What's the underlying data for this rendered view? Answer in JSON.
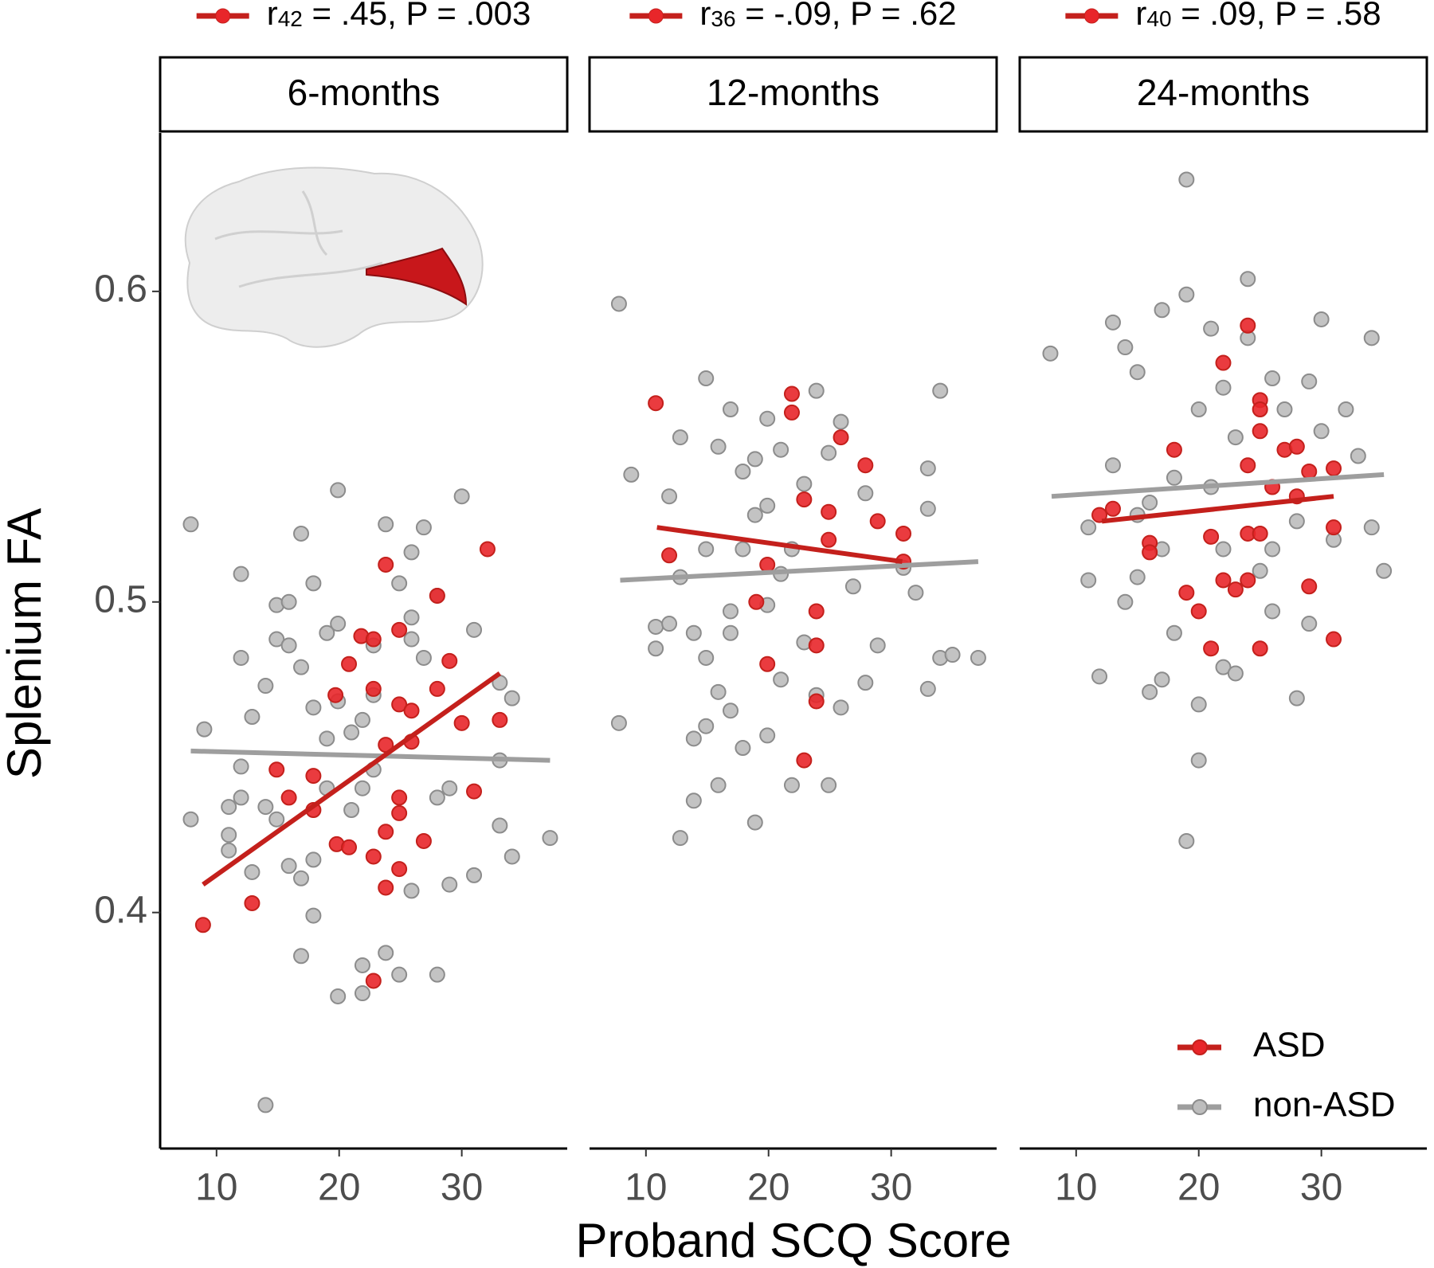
{
  "y_label": "Splenium FA",
  "x_label": "Proband SCQ Score",
  "chart_data": [
    {
      "type": "scatter",
      "title": "6-months",
      "annotation": {
        "symbol": "r",
        "subscript": "42",
        "text": " = .45, P = .003"
      },
      "xlim": [
        5.4,
        38.6
      ],
      "xticks": [
        10,
        20,
        30
      ],
      "ylim": [
        0.324,
        0.651
      ],
      "yticks": [
        0.4,
        0.5,
        0.6
      ],
      "series": [
        {
          "name": "non-ASD",
          "color": "#bdbdbd",
          "line_color": "#9e9e9e",
          "x": [
            7.9,
            7.9,
            9,
            11,
            11,
            11,
            12,
            12,
            12,
            12,
            12.9,
            12.9,
            14,
            14,
            14,
            14.9,
            14.9,
            14.9,
            15.9,
            15.9,
            15.9,
            16.9,
            16.9,
            16.9,
            16.9,
            17.9,
            17.9,
            17.9,
            17.9,
            19,
            19,
            19.9,
            19.9,
            19.9,
            19.9,
            21,
            21,
            21.9,
            21.9,
            21.9,
            22.8,
            22.8,
            23.8,
            23.8,
            24.9,
            24.9,
            25.9,
            25.9,
            25.9,
            26.9,
            26.9,
            28,
            28,
            28,
            29,
            29,
            30,
            31,
            31,
            33.1,
            33.1,
            33.1,
            34.1,
            34.1,
            37.2,
            22.8,
            25.9,
            19,
            21.9
          ],
          "values": [
            0.525,
            0.43,
            0.459,
            0.434,
            0.425,
            0.42,
            0.509,
            0.482,
            0.447,
            0.437,
            0.463,
            0.413,
            0.473,
            0.434,
            0.338,
            0.499,
            0.488,
            0.43,
            0.5,
            0.486,
            0.415,
            0.522,
            0.479,
            0.411,
            0.386,
            0.506,
            0.466,
            0.399,
            0.417,
            0.49,
            0.456,
            0.536,
            0.493,
            0.468,
            0.373,
            0.458,
            0.433,
            0.462,
            0.383,
            0.374,
            0.47,
            0.446,
            0.525,
            0.387,
            0.506,
            0.38,
            0.516,
            0.495,
            0.407,
            0.524,
            0.482,
            0.502,
            0.437,
            0.38,
            0.44,
            0.409,
            0.534,
            0.491,
            0.412,
            0.474,
            0.449,
            0.428,
            0.469,
            0.418,
            0.424,
            0.486,
            0.488,
            0.44,
            0.44
          ],
          "fit_x": [
            7.9,
            37.2
          ],
          "fit_values": [
            0.452,
            0.449
          ]
        },
        {
          "name": "ASD",
          "color": "#e8262a",
          "line_color": "#c4201c",
          "x": [
            8.9,
            12.9,
            14.9,
            15.9,
            17.9,
            17.9,
            19.7,
            19.8,
            20.8,
            20.8,
            21.8,
            22.8,
            22.8,
            22.8,
            23.8,
            23.8,
            23.8,
            23.8,
            24.9,
            24.9,
            24.9,
            24.9,
            24.9,
            25.9,
            25.9,
            26.9,
            28,
            29,
            30,
            31,
            32.1,
            33.1,
            22.8,
            28
          ],
          "values": [
            0.396,
            0.403,
            0.446,
            0.437,
            0.444,
            0.433,
            0.47,
            0.422,
            0.48,
            0.421,
            0.489,
            0.418,
            0.472,
            0.378,
            0.512,
            0.454,
            0.426,
            0.408,
            0.491,
            0.467,
            0.432,
            0.414,
            0.437,
            0.465,
            0.455,
            0.423,
            0.472,
            0.481,
            0.461,
            0.439,
            0.517,
            0.462,
            0.488,
            0.502
          ],
          "fit_x": [
            8.9,
            33.1
          ],
          "fit_values": [
            0.409,
            0.477
          ]
        }
      ]
    },
    {
      "type": "scatter",
      "title": "12-months",
      "annotation": {
        "symbol": "r",
        "subscript": "36",
        "text": " = -.09, P = .62"
      },
      "xlim": [
        5.4,
        38.6
      ],
      "xticks": [
        10,
        20,
        30
      ],
      "ylim": [
        0.324,
        0.651
      ],
      "series": [
        {
          "name": "non-ASD",
          "color": "#bdbdbd",
          "line_color": "#9e9e9e",
          "x": [
            7.8,
            7.8,
            8.8,
            10.8,
            10.8,
            11.9,
            11.9,
            12.8,
            12.8,
            12.8,
            13.9,
            13.9,
            13.9,
            14.9,
            14.9,
            14.9,
            14.9,
            15.9,
            15.9,
            15.9,
            16.9,
            16.9,
            16.9,
            16.9,
            17.9,
            17.9,
            17.9,
            18.9,
            18.9,
            18.9,
            19.9,
            19.9,
            19.9,
            21,
            21,
            21,
            21.9,
            22.9,
            22.9,
            23.9,
            23.9,
            24.9,
            24.9,
            25.9,
            25.9,
            26.9,
            27.9,
            27.9,
            28.9,
            31,
            32,
            33,
            33,
            33,
            34,
            34,
            35,
            37.1,
            21.9,
            19.9
          ],
          "values": [
            0.596,
            0.461,
            0.541,
            0.492,
            0.485,
            0.534,
            0.493,
            0.424,
            0.553,
            0.508,
            0.49,
            0.456,
            0.436,
            0.572,
            0.517,
            0.482,
            0.46,
            0.55,
            0.471,
            0.441,
            0.562,
            0.497,
            0.49,
            0.465,
            0.542,
            0.517,
            0.453,
            0.546,
            0.528,
            0.429,
            0.559,
            0.531,
            0.457,
            0.549,
            0.509,
            0.475,
            0.441,
            0.538,
            0.487,
            0.568,
            0.47,
            0.548,
            0.441,
            0.558,
            0.466,
            0.505,
            0.535,
            0.474,
            0.486,
            0.511,
            0.503,
            0.543,
            0.53,
            0.472,
            0.568,
            0.482,
            0.483,
            0.482,
            0.517,
            0.499
          ],
          "fit_x": [
            7.9,
            37.1
          ],
          "fit_values": [
            0.507,
            0.513
          ]
        },
        {
          "name": "ASD",
          "color": "#e8262a",
          "line_color": "#c4201c",
          "x": [
            10.8,
            11.9,
            19,
            19.9,
            19.9,
            21.9,
            21.9,
            22.9,
            22.9,
            23.9,
            23.9,
            23.9,
            24.9,
            24.9,
            25.9,
            27.9,
            28.9,
            31,
            31
          ],
          "values": [
            0.564,
            0.515,
            0.5,
            0.48,
            0.512,
            0.567,
            0.561,
            0.533,
            0.449,
            0.497,
            0.486,
            0.468,
            0.529,
            0.52,
            0.553,
            0.544,
            0.526,
            0.522,
            0.513
          ],
          "fit_x": [
            10.9,
            30.9
          ],
          "fit_values": [
            0.524,
            0.513
          ]
        }
      ]
    },
    {
      "type": "scatter",
      "title": "24-months",
      "annotation": {
        "symbol": "r",
        "subscript": "40",
        "text": " = .09, P = .58"
      },
      "xlim": [
        5.4,
        38.6
      ],
      "xticks": [
        10,
        20,
        30
      ],
      "ylim": [
        0.324,
        0.651
      ],
      "legend": "bottom-right",
      "series": [
        {
          "name": "non-ASD",
          "color": "#bdbdbd",
          "line_color": "#9e9e9e",
          "x": [
            7.9,
            11,
            11,
            11.9,
            13,
            13,
            14,
            14,
            15,
            15,
            16,
            16,
            17,
            17,
            18,
            19,
            19,
            19,
            20,
            20,
            20,
            21,
            21,
            22,
            22,
            23,
            23,
            24,
            24,
            25,
            26,
            26,
            27,
            28,
            28,
            29,
            29,
            30,
            31,
            32,
            33,
            34.1,
            34.1,
            35.1,
            15,
            17,
            18,
            22,
            26,
            30
          ],
          "values": [
            0.58,
            0.524,
            0.507,
            0.476,
            0.544,
            0.59,
            0.582,
            0.5,
            0.574,
            0.508,
            0.471,
            0.532,
            0.594,
            0.475,
            0.49,
            0.636,
            0.599,
            0.423,
            0.449,
            0.467,
            0.562,
            0.588,
            0.537,
            0.569,
            0.479,
            0.553,
            0.477,
            0.604,
            0.585,
            0.51,
            0.572,
            0.497,
            0.562,
            0.526,
            0.469,
            0.571,
            0.493,
            0.591,
            0.52,
            0.562,
            0.547,
            0.585,
            0.524,
            0.51,
            0.528,
            0.517,
            0.54,
            0.517,
            0.517,
            0.555
          ],
          "fit_x": [
            8,
            35.1
          ],
          "fit_values": [
            0.534,
            0.541
          ]
        },
        {
          "name": "ASD",
          "color": "#e8262a",
          "line_color": "#c4201c",
          "x": [
            11.9,
            13,
            16,
            16,
            18,
            19,
            20,
            21,
            21,
            22,
            22,
            23,
            24,
            24,
            24,
            25,
            25,
            25,
            25,
            25,
            24,
            26,
            27,
            28,
            28,
            29,
            29,
            31,
            31,
            31
          ],
          "values": [
            0.528,
            0.53,
            0.519,
            0.516,
            0.549,
            0.503,
            0.497,
            0.485,
            0.521,
            0.577,
            0.507,
            0.504,
            0.522,
            0.544,
            0.507,
            0.565,
            0.562,
            0.555,
            0.522,
            0.485,
            0.589,
            0.537,
            0.549,
            0.55,
            0.534,
            0.542,
            0.505,
            0.543,
            0.524,
            0.488
          ],
          "fit_x": [
            12.1,
            31
          ],
          "fit_values": [
            0.526,
            0.534
          ]
        }
      ]
    }
  ]
}
